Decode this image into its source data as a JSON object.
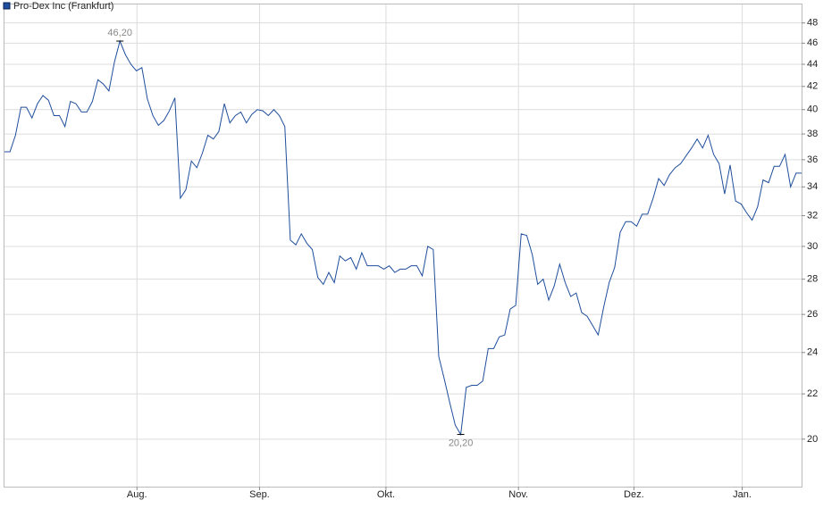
{
  "chart_data": {
    "type": "line",
    "scale": "log",
    "grid": true,
    "legend": "top-left",
    "series": [
      {
        "name": "Pro-Dex Inc (Frankfurt)",
        "color": "#1f4e9c",
        "values": [
          36.6,
          36.6,
          37.9,
          40.2,
          40.2,
          39.3,
          40.5,
          41.2,
          40.8,
          39.5,
          39.5,
          38.6,
          40.7,
          40.5,
          39.8,
          39.8,
          40.7,
          42.6,
          42.2,
          41.6,
          44.2,
          46.2,
          44.9,
          44.0,
          43.4,
          43.7,
          40.9,
          39.5,
          38.7,
          39.1,
          39.9,
          41.0,
          33.2,
          33.8,
          35.9,
          35.4,
          36.5,
          37.9,
          37.6,
          38.2,
          40.5,
          38.9,
          39.5,
          39.8,
          38.9,
          39.6,
          40.0,
          39.9,
          39.5,
          40.0,
          39.5,
          38.6,
          30.4,
          30.1,
          30.8,
          30.2,
          29.8,
          28.1,
          27.7,
          28.4,
          27.8,
          29.4,
          29.1,
          29.3,
          28.6,
          29.6,
          28.8,
          28.8,
          28.8,
          28.6,
          28.8,
          28.4,
          28.6,
          28.6,
          28.8,
          28.8,
          28.2,
          30.0,
          29.8,
          23.8,
          22.7,
          21.6,
          20.6,
          20.2,
          22.3,
          22.4,
          22.4,
          22.6,
          24.2,
          24.2,
          24.8,
          24.9,
          26.3,
          26.5,
          30.8,
          30.7,
          29.5,
          27.7,
          28.0,
          26.8,
          27.6,
          28.9,
          27.8,
          27.0,
          27.2,
          26.1,
          25.9,
          25.4,
          24.9,
          26.4,
          27.8,
          28.7,
          30.9,
          31.6,
          31.6,
          31.3,
          32.1,
          32.1,
          33.2,
          34.6,
          34.1,
          34.9,
          35.4,
          35.7,
          36.3,
          36.9,
          37.6,
          36.9,
          37.9,
          36.4,
          35.7,
          33.5,
          35.6,
          33.0,
          32.8,
          32.2,
          31.7,
          32.6,
          34.5,
          34.3,
          35.5,
          35.5,
          36.4,
          34.0,
          35.0,
          35.0
        ]
      }
    ],
    "annotations": [
      {
        "x": 21,
        "label": "46,20"
      },
      {
        "x": 83,
        "label": "20,20"
      }
    ],
    "xlim": [
      0,
      145
    ],
    "xticks": [
      {
        "value": 24.1,
        "label": "Aug."
      },
      {
        "value": 46.4,
        "label": "Sep."
      },
      {
        "value": 69.4,
        "label": "Okt."
      },
      {
        "value": 93.5,
        "label": "Nov."
      },
      {
        "value": 114.5,
        "label": "Dez."
      },
      {
        "value": 134.2,
        "label": "Jan."
      }
    ],
    "ylim": [
      18.1,
      49.9
    ],
    "yticks": [
      20,
      22,
      24,
      26,
      28,
      30,
      32,
      34,
      36,
      38,
      40,
      42,
      44,
      46,
      48
    ]
  }
}
